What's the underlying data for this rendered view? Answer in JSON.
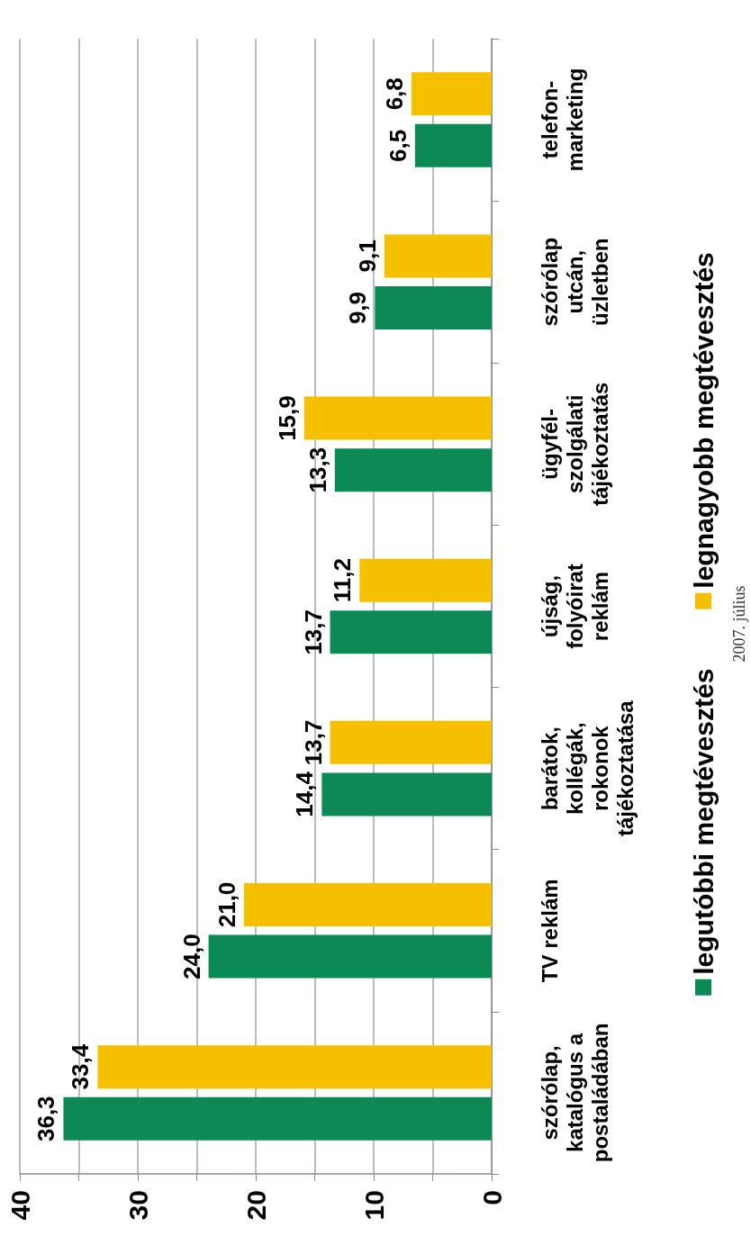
{
  "chart_data": {
    "type": "bar",
    "orientation": "horizontal",
    "categories": [
      "telefon-\nmarketing",
      "szórólap\nutcán,\nüzletben",
      "ügyfél-\nszolgálati\ntájékoztatás",
      "újság,\nfolyóirat\nreklám",
      "barátok,\nkollégák,\nrokonok\ntájékoztatása",
      "TV reklám",
      "szórólap,\nkatalógus a\npostaládában"
    ],
    "series": [
      {
        "name": "legutóbbi megtévesztés",
        "color": "#0b8a56",
        "values": [
          6.5,
          9.9,
          13.3,
          13.7,
          14.4,
          24.0,
          36.3
        ],
        "value_labels": [
          "6,5",
          "9,9",
          "13,3",
          "13,7",
          "14,4",
          "24,0",
          "36,3"
        ]
      },
      {
        "name": "legnagyobb megtévesztés",
        "color": "#f5c000",
        "values": [
          6.8,
          9.1,
          15.9,
          11.2,
          13.7,
          21.0,
          33.4
        ],
        "value_labels": [
          "6,8",
          "9,1",
          "15,9",
          "11,2",
          "13,7",
          "21,0",
          "33,4"
        ]
      }
    ],
    "xlim": [
      40,
      0
    ],
    "xticks": [
      40,
      {
        "value": 35,
        "label": null
      },
      30,
      {
        "value": 25,
        "label": null
      },
      20,
      {
        "value": 15,
        "label": null
      },
      10,
      {
        "value": 5,
        "label": null
      },
      0
    ],
    "grid": "x",
    "legend": "right",
    "annotations": [
      "2007. július"
    ]
  }
}
